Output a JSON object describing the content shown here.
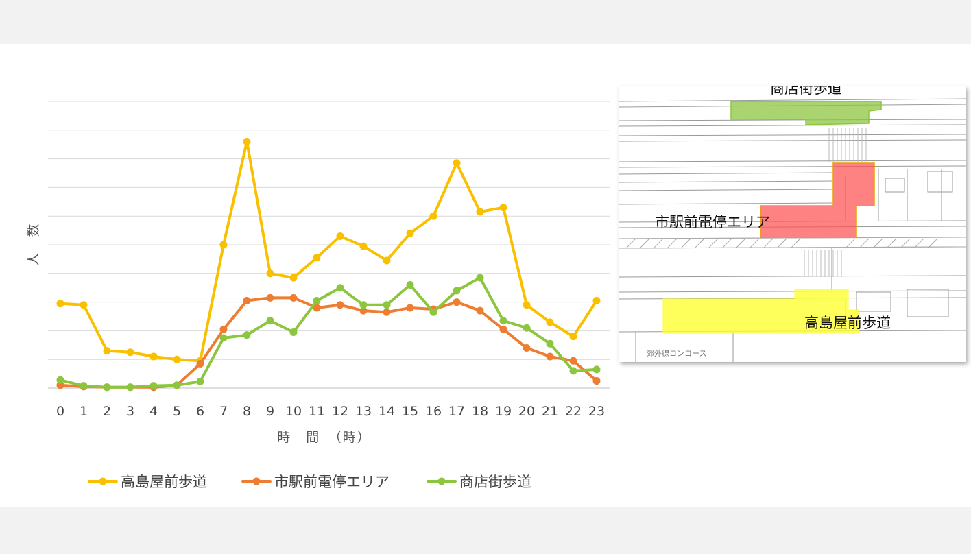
{
  "chart_data": {
    "type": "line",
    "x": [
      0,
      1,
      2,
      3,
      4,
      5,
      6,
      7,
      8,
      9,
      10,
      11,
      12,
      13,
      14,
      15,
      16,
      17,
      18,
      19,
      20,
      21,
      22,
      23
    ],
    "xlabel": "時　間　（時）",
    "ylabel": "人　数",
    "ylim": [
      0,
      100
    ],
    "y_ticks_visible": false,
    "grid": true,
    "legend": "bottom",
    "series": [
      {
        "name": "高島屋前歩道",
        "color": "#f9c000",
        "values": [
          29.5,
          29,
          13,
          12.5,
          11,
          10,
          9.5,
          50,
          86,
          40,
          38.5,
          45.5,
          53,
          49.5,
          44.5,
          54,
          60,
          78.5,
          61.5,
          63,
          29,
          23,
          18,
          30.5
        ]
      },
      {
        "name": "市駅前電停エリア",
        "color": "#ed7d31",
        "values": [
          1,
          0.5,
          0.3,
          0.3,
          0.3,
          1,
          8.5,
          20.5,
          30.5,
          31.5,
          31.5,
          28,
          29,
          27,
          26.5,
          28,
          27.5,
          30,
          27,
          20.5,
          14,
          11,
          9.5,
          2.5
        ]
      },
      {
        "name": "商店街歩道",
        "color": "#8cc63f",
        "values": [
          2.8,
          0.8,
          0.3,
          0.3,
          0.8,
          1,
          2.3,
          17.5,
          18.5,
          23.5,
          19.5,
          30.5,
          35,
          29,
          29,
          36,
          26.5,
          34,
          38.5,
          23.5,
          21,
          15.5,
          6,
          6.5
        ]
      }
    ]
  },
  "map": {
    "labels": {
      "shotengai": "商店街歩道",
      "shieki": "市駅前電停エリア",
      "takashimaya": "高島屋前歩道",
      "concourse": "郊外線コンコース"
    },
    "colors": {
      "green": "#8cc63f",
      "red": "#ff4d4d",
      "yellow": "#ffff33"
    }
  }
}
